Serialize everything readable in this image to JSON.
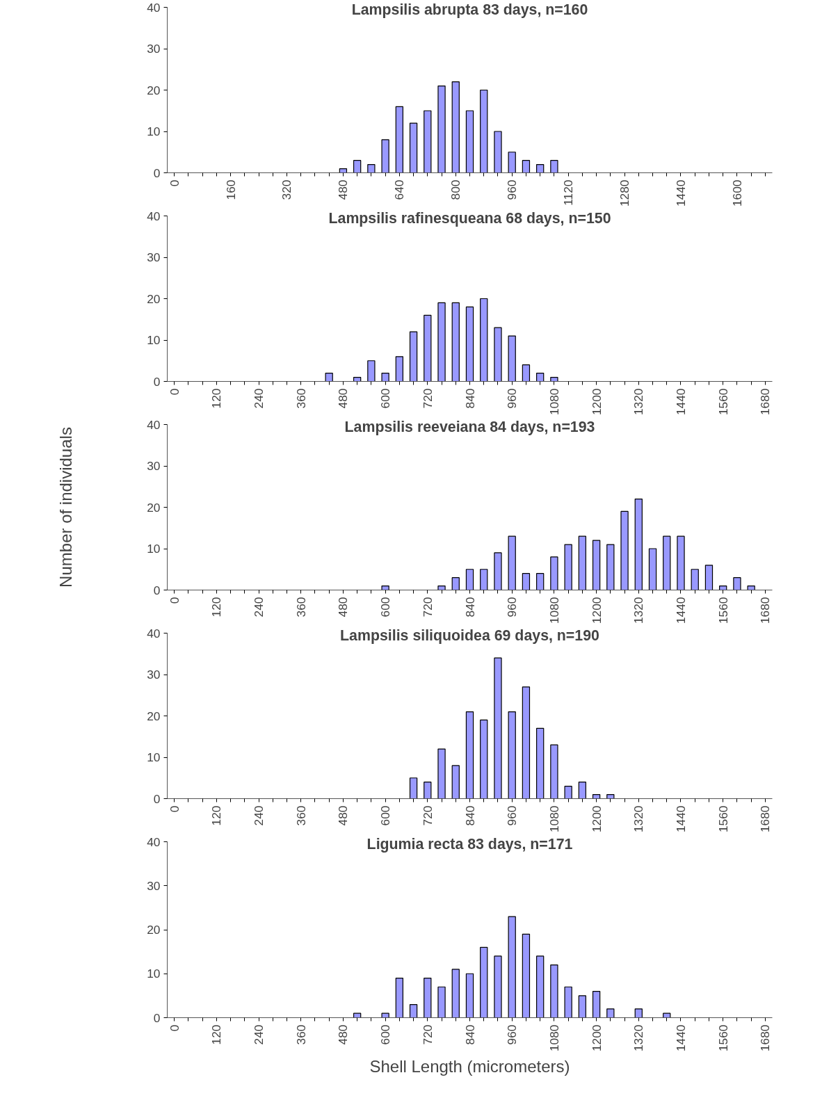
{
  "chart_data": [
    {
      "type": "bar",
      "title": "Lampsilis abrupta 83 days, n=160",
      "color": "#9999ff",
      "ylim": [
        0,
        40
      ],
      "yticks": [
        0,
        10,
        20,
        30,
        40
      ],
      "categories": [
        "0",
        null,
        null,
        null,
        "160",
        null,
        null,
        null,
        "320",
        null,
        null,
        null,
        "480",
        null,
        null,
        null,
        "640",
        null,
        null,
        null,
        "800",
        null,
        null,
        null,
        "960",
        null,
        null,
        null,
        "1120",
        null,
        null,
        null,
        "1280",
        null,
        null,
        null,
        "1440",
        null,
        null,
        null,
        "1600",
        null,
        null
      ],
      "values": [
        0,
        0,
        0,
        0,
        0,
        0,
        0,
        0,
        0,
        0,
        0,
        0,
        1,
        3,
        2,
        8,
        16,
        12,
        15,
        21,
        22,
        15,
        20,
        10,
        5,
        3,
        2,
        3,
        0,
        0,
        0,
        0,
        0,
        0,
        0,
        0,
        0,
        0,
        0,
        0,
        0,
        0,
        0
      ]
    },
    {
      "type": "bar",
      "title": "Lampsilis rafinesqueana 68 days, n=150",
      "color": "#9999ff",
      "ylim": [
        0,
        40
      ],
      "yticks": [
        0,
        10,
        20,
        30,
        40
      ],
      "categories": [
        "0",
        null,
        null,
        "120",
        null,
        null,
        "240",
        null,
        null,
        "360",
        null,
        null,
        "480",
        null,
        null,
        "600",
        null,
        null,
        "720",
        null,
        null,
        "840",
        null,
        null,
        "960",
        null,
        null,
        "1080",
        null,
        null,
        "1200",
        null,
        null,
        "1320",
        null,
        null,
        "1440",
        null,
        null,
        "1560",
        null,
        null,
        "1680"
      ],
      "values": [
        0,
        0,
        0,
        0,
        0,
        0,
        0,
        0,
        0,
        0,
        0,
        2,
        0,
        1,
        5,
        2,
        6,
        12,
        16,
        19,
        19,
        18,
        20,
        13,
        11,
        4,
        2,
        1,
        0,
        0,
        0,
        0,
        0,
        0,
        0,
        0,
        0,
        0,
        0,
        0,
        0,
        0,
        0
      ]
    },
    {
      "type": "bar",
      "title": "Lampsilis reeveiana 84 days, n=193",
      "ylabel": "Number of individuals",
      "color": "#9999ff",
      "ylim": [
        0,
        40
      ],
      "yticks": [
        0,
        10,
        20,
        30,
        40
      ],
      "categories": [
        "0",
        null,
        null,
        "120",
        null,
        null,
        "240",
        null,
        null,
        "360",
        null,
        null,
        "480",
        null,
        null,
        "600",
        null,
        null,
        "720",
        null,
        null,
        "840",
        null,
        null,
        "960",
        null,
        null,
        "1080",
        null,
        null,
        "1200",
        null,
        null,
        "1320",
        null,
        null,
        "1440",
        null,
        null,
        "1560",
        null,
        null,
        "1680"
      ],
      "values": [
        0,
        0,
        0,
        0,
        0,
        0,
        0,
        0,
        0,
        0,
        0,
        0,
        0,
        0,
        0,
        1,
        0,
        0,
        0,
        1,
        3,
        5,
        5,
        9,
        13,
        4,
        4,
        8,
        11,
        13,
        12,
        11,
        19,
        22,
        10,
        13,
        13,
        5,
        6,
        1,
        3,
        1,
        0
      ]
    },
    {
      "type": "bar",
      "title": "Lampsilis siliquoidea 69 days, n=190",
      "color": "#9999ff",
      "ylim": [
        0,
        40
      ],
      "yticks": [
        0,
        10,
        20,
        30,
        40
      ],
      "categories": [
        "0",
        null,
        null,
        "120",
        null,
        null,
        "240",
        null,
        null,
        "360",
        null,
        null,
        "480",
        null,
        null,
        "600",
        null,
        null,
        "720",
        null,
        null,
        "840",
        null,
        null,
        "960",
        null,
        null,
        "1080",
        null,
        null,
        "1200",
        null,
        null,
        "1320",
        null,
        null,
        "1440",
        null,
        null,
        "1560",
        null,
        null,
        "1680"
      ],
      "values": [
        0,
        0,
        0,
        0,
        0,
        0,
        0,
        0,
        0,
        0,
        0,
        0,
        0,
        0,
        0,
        0,
        0,
        5,
        4,
        12,
        8,
        21,
        19,
        34,
        21,
        27,
        17,
        13,
        3,
        4,
        1,
        1,
        0,
        0,
        0,
        0,
        0,
        0,
        0,
        0,
        0,
        0,
        0
      ]
    },
    {
      "type": "bar",
      "title": "Ligumia recta 83 days, n=171",
      "xlabel": "Shell Length (micrometers)",
      "color": "#9999ff",
      "ylim": [
        0,
        40
      ],
      "yticks": [
        0,
        10,
        20,
        30,
        40
      ],
      "categories": [
        "0",
        null,
        null,
        "120",
        null,
        null,
        "240",
        null,
        null,
        "360",
        null,
        null,
        "480",
        null,
        null,
        "600",
        null,
        null,
        "720",
        null,
        null,
        "840",
        null,
        null,
        "960",
        null,
        null,
        "1080",
        null,
        null,
        "1200",
        null,
        null,
        "1320",
        null,
        null,
        "1440",
        null,
        null,
        "1560",
        null,
        null,
        "1680"
      ],
      "values": [
        0,
        0,
        0,
        0,
        0,
        0,
        0,
        0,
        0,
        0,
        0,
        0,
        0,
        1,
        0,
        1,
        9,
        3,
        9,
        7,
        11,
        10,
        16,
        14,
        23,
        19,
        14,
        12,
        7,
        5,
        6,
        2,
        0,
        2,
        0,
        1,
        0,
        0,
        0,
        0,
        0,
        0,
        0
      ]
    }
  ]
}
